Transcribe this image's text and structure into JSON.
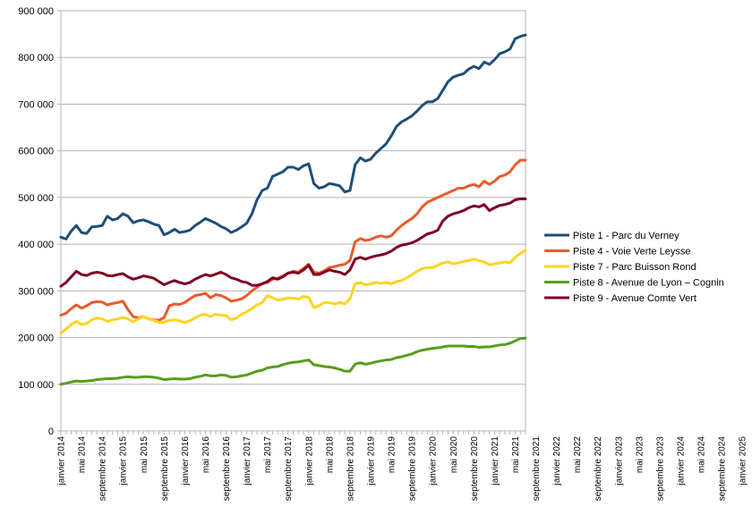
{
  "chart_data": {
    "type": "line",
    "title": "",
    "xlabel": "",
    "ylabel": "",
    "ylim": [
      0,
      900000
    ],
    "y_ticks": [
      0,
      100000,
      200000,
      300000,
      400000,
      500000,
      600000,
      700000,
      800000,
      900000
    ],
    "y_tick_labels": [
      "0",
      "100 000",
      "200 000",
      "300 000",
      "400 000",
      "500 000",
      "600 000",
      "700 000",
      "800 000",
      "900 000"
    ],
    "x_tick_labels": [
      "janvier 2014",
      "mai 2014",
      "septembre 2014",
      "janvier 2015",
      "mai 2015",
      "septembre 2015",
      "janvier 2016",
      "mai 2016",
      "septembre 2016",
      "janvier 2017",
      "mai 2017",
      "septembre 2017",
      "janvier 2018",
      "mai 2018",
      "septembre 2018",
      "janvier 2019",
      "mai 2019",
      "septembre 2019",
      "janvier 2020",
      "mai 2020",
      "septembre 2020",
      "janvier 2021",
      "mai 2021",
      "septembre 2021",
      "janvier 2022",
      "mai 2022",
      "septembre 2022",
      "janvier 2023",
      "mai 2023",
      "septembre 2023",
      "janvier 2024",
      "mai 2024",
      "septembre 2024",
      "janvier 2025",
      "mai 2025"
    ],
    "grid": "horizontal",
    "legend_position": "right",
    "x_start": "janvier 2014",
    "x_frequency": "monthly",
    "series": [
      {
        "name": "Piste 1 - Parc du Verney",
        "color": "#1f4e79",
        "values": [
          415000,
          411000,
          428000,
          440000,
          425000,
          423000,
          437000,
          438000,
          440000,
          460000,
          452000,
          455000,
          465000,
          460000,
          446000,
          450000,
          452000,
          448000,
          443000,
          440000,
          420000,
          425000,
          432000,
          425000,
          427000,
          430000,
          440000,
          447000,
          455000,
          450000,
          445000,
          438000,
          433000,
          425000,
          430000,
          437000,
          445000,
          465000,
          495000,
          515000,
          520000,
          545000,
          550000,
          555000,
          565000,
          565000,
          560000,
          568000,
          572000,
          530000,
          520000,
          523000,
          530000,
          528000,
          525000,
          512000,
          515000,
          570000,
          585000,
          578000,
          582000,
          595000,
          605000,
          615000,
          632000,
          652000,
          662000,
          668000,
          675000,
          685000,
          697000,
          705000,
          705000,
          712000,
          730000,
          748000,
          758000,
          762000,
          765000,
          775000,
          781000,
          776000,
          790000,
          785000,
          795000,
          808000,
          812000,
          818000,
          840000,
          845000,
          848000
        ]
      },
      {
        "name": "Piste 4 - Voie Verte Leysse",
        "color": "#ea5a2a",
        "values": [
          248000,
          252000,
          262000,
          270000,
          263000,
          268000,
          275000,
          277000,
          276000,
          270000,
          273000,
          275000,
          278000,
          260000,
          245000,
          242000,
          245000,
          240000,
          238000,
          237000,
          243000,
          268000,
          272000,
          271000,
          275000,
          283000,
          290000,
          292000,
          295000,
          285000,
          292000,
          290000,
          285000,
          278000,
          280000,
          283000,
          290000,
          300000,
          308000,
          316000,
          318000,
          325000,
          327000,
          332000,
          338000,
          342000,
          340000,
          348000,
          357000,
          340000,
          338000,
          343000,
          350000,
          352000,
          355000,
          357000,
          365000,
          405000,
          412000,
          408000,
          410000,
          415000,
          418000,
          415000,
          418000,
          430000,
          440000,
          448000,
          455000,
          465000,
          480000,
          490000,
          495000,
          500000,
          505000,
          510000,
          515000,
          520000,
          520000,
          525000,
          528000,
          523000,
          535000,
          528000,
          535000,
          545000,
          548000,
          555000,
          570000,
          580000,
          580000
        ]
      },
      {
        "name": "Piste 7 - Parc Buisson Rond",
        "color": "#ffd320",
        "values": [
          210000,
          218000,
          228000,
          235000,
          228000,
          230000,
          238000,
          242000,
          240000,
          235000,
          238000,
          240000,
          243000,
          240000,
          234000,
          240000,
          245000,
          240000,
          237000,
          233000,
          233000,
          237000,
          238000,
          236000,
          232000,
          236000,
          242000,
          248000,
          250000,
          245000,
          250000,
          248000,
          247000,
          238000,
          242000,
          250000,
          255000,
          262000,
          270000,
          275000,
          290000,
          285000,
          280000,
          282000,
          285000,
          284000,
          283000,
          288000,
          286000,
          264000,
          268000,
          275000,
          275000,
          272000,
          275000,
          272000,
          283000,
          315000,
          318000,
          313000,
          315000,
          318000,
          316000,
          318000,
          315000,
          320000,
          322000,
          328000,
          335000,
          342000,
          348000,
          350000,
          350000,
          355000,
          360000,
          362000,
          358000,
          360000,
          363000,
          365000,
          368000,
          365000,
          362000,
          356000,
          358000,
          360000,
          362000,
          360000,
          372000,
          380000,
          387000
        ]
      },
      {
        "name": "Piste 8  - Avenue de Lyon – Cognin",
        "color": "#579d1c",
        "values": [
          100000,
          102000,
          105000,
          107000,
          106000,
          107000,
          108000,
          110000,
          111000,
          112000,
          112000,
          113000,
          115000,
          116000,
          115000,
          115000,
          116000,
          116000,
          115000,
          113000,
          110000,
          111000,
          112000,
          111000,
          111000,
          112000,
          115000,
          117000,
          120000,
          118000,
          118000,
          120000,
          119000,
          115000,
          116000,
          118000,
          120000,
          124000,
          128000,
          130000,
          135000,
          137000,
          138000,
          142000,
          145000,
          147000,
          148000,
          150000,
          152000,
          142000,
          140000,
          138000,
          137000,
          135000,
          132000,
          128000,
          128000,
          143000,
          146000,
          143000,
          145000,
          148000,
          150000,
          152000,
          153000,
          157000,
          159000,
          162000,
          165000,
          170000,
          173000,
          175000,
          177000,
          178000,
          180000,
          182000,
          182000,
          182000,
          182000,
          181000,
          181000,
          179000,
          180000,
          180000,
          182000,
          184000,
          185000,
          188000,
          193000,
          198000,
          199000
        ]
      },
      {
        "name": "Piste 9 - Avenue Comte Vert",
        "color": "#7e0021",
        "values": [
          310000,
          318000,
          330000,
          342000,
          335000,
          333000,
          338000,
          340000,
          338000,
          333000,
          332000,
          335000,
          337000,
          330000,
          325000,
          328000,
          332000,
          330000,
          327000,
          320000,
          313000,
          318000,
          322000,
          318000,
          315000,
          318000,
          325000,
          330000,
          335000,
          332000,
          336000,
          340000,
          335000,
          328000,
          325000,
          320000,
          318000,
          312000,
          312000,
          315000,
          320000,
          328000,
          325000,
          330000,
          338000,
          340000,
          338000,
          345000,
          355000,
          335000,
          335000,
          340000,
          345000,
          342000,
          340000,
          335000,
          345000,
          368000,
          372000,
          368000,
          372000,
          375000,
          377000,
          380000,
          385000,
          393000,
          398000,
          400000,
          403000,
          408000,
          415000,
          422000,
          425000,
          430000,
          450000,
          460000,
          465000,
          468000,
          472000,
          478000,
          482000,
          480000,
          485000,
          472000,
          478000,
          483000,
          485000,
          488000,
          495000,
          497000,
          497000
        ]
      }
    ]
  }
}
